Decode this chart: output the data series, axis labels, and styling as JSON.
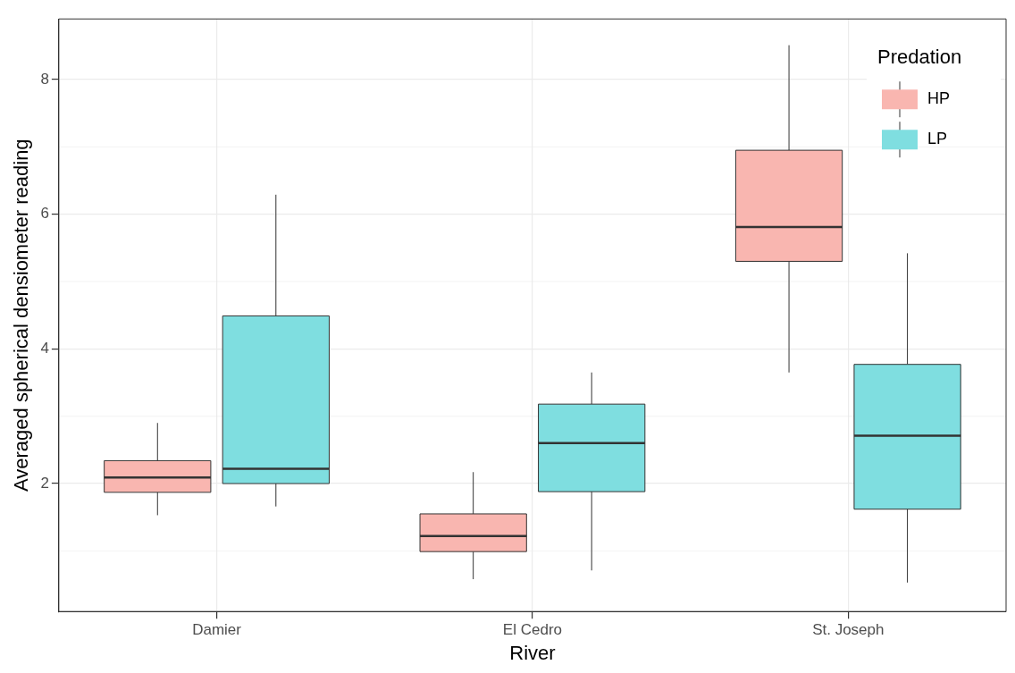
{
  "chart_data": {
    "type": "box",
    "xlabel": "River",
    "ylabel": "Averaged spherical densiometer reading",
    "legend_title": "Predation",
    "legend": "top right",
    "grid": true,
    "categories": [
      "Damier",
      "El Cedro",
      "St. Joseph"
    ],
    "ylim": [
      0.1,
      8.9
    ],
    "yticks": [
      2,
      4,
      6,
      8
    ],
    "series": [
      {
        "name": "HP",
        "color": "#f9b6b0",
        "boxes": [
          {
            "low": 1.53,
            "q1": 1.87,
            "median": 2.09,
            "q3": 2.34,
            "high": 2.9
          },
          {
            "low": 0.58,
            "q1": 0.99,
            "median": 1.22,
            "q3": 1.55,
            "high": 2.17
          },
          {
            "low": 3.65,
            "q1": 5.3,
            "median": 5.81,
            "q3": 6.95,
            "high": 8.51
          }
        ]
      },
      {
        "name": "LP",
        "color": "#7fdee0",
        "boxes": [
          {
            "low": 1.66,
            "q1": 2.0,
            "median": 2.22,
            "q3": 4.49,
            "high": 6.29
          },
          {
            "low": 0.71,
            "q1": 1.88,
            "median": 2.6,
            "q3": 3.18,
            "high": 3.65
          },
          {
            "low": 0.53,
            "q1": 1.62,
            "median": 2.71,
            "q3": 3.77,
            "high": 5.42
          }
        ]
      }
    ]
  }
}
